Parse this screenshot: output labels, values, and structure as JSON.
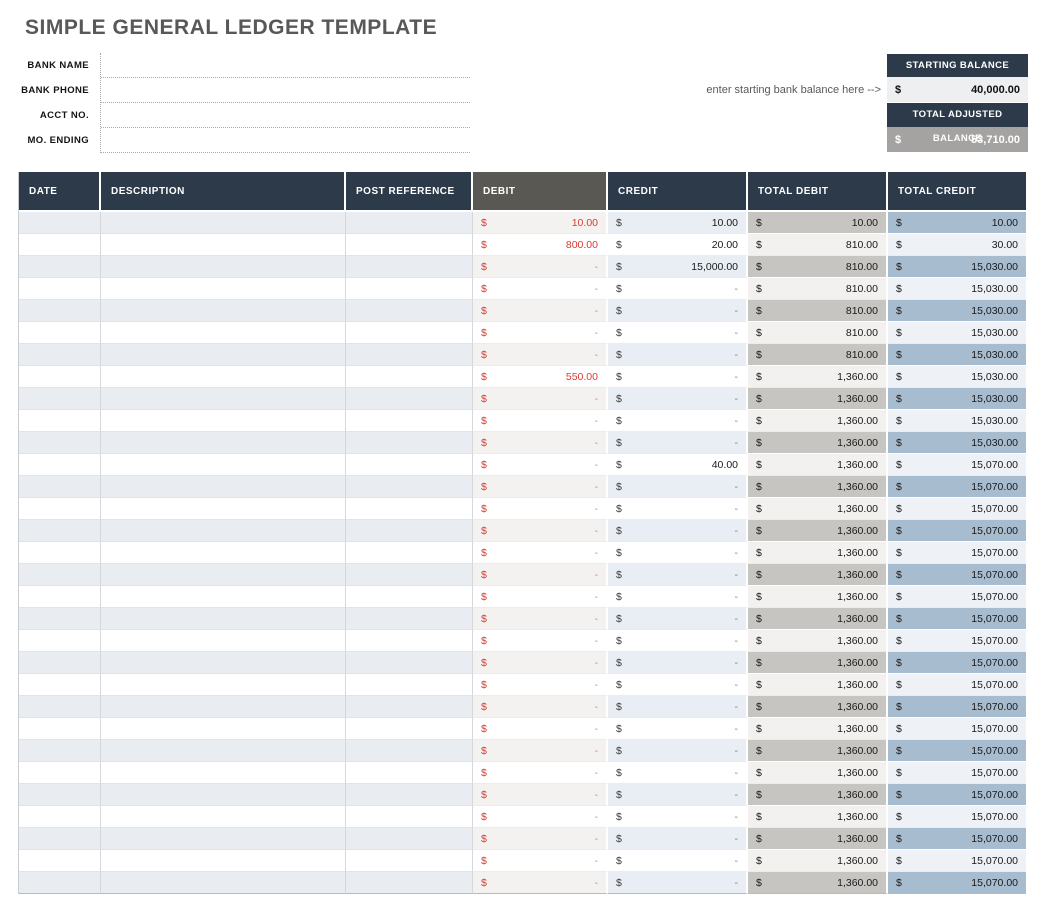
{
  "title": "SIMPLE GENERAL LEDGER TEMPLATE",
  "form": {
    "fields": [
      {
        "label": "BANK NAME",
        "value": ""
      },
      {
        "label": "BANK PHONE",
        "value": ""
      },
      {
        "label": "ACCT NO.",
        "value": ""
      },
      {
        "label": "MO. ENDING",
        "value": ""
      }
    ]
  },
  "balance": {
    "annotation": "enter starting bank balance here -->",
    "starting": {
      "label": "STARTING BALANCE",
      "currency": "$",
      "value": "40,000.00"
    },
    "adjusted": {
      "label": "TOTAL ADJUSTED BALANCE",
      "currency": "$",
      "value": "53,710.00"
    }
  },
  "table": {
    "columns": [
      "DATE",
      "DESCRIPTION",
      "POST REFERENCE",
      "DEBIT",
      "CREDIT",
      "TOTAL DEBIT",
      "TOTAL CREDIT"
    ],
    "currency": "$",
    "rows": [
      {
        "date": "",
        "description": "",
        "post_reference": "",
        "debit": "10.00",
        "credit": "10.00",
        "total_debit": "10.00",
        "total_credit": "10.00"
      },
      {
        "date": "",
        "description": "",
        "post_reference": "",
        "debit": "800.00",
        "credit": "20.00",
        "total_debit": "810.00",
        "total_credit": "30.00"
      },
      {
        "date": "",
        "description": "",
        "post_reference": "",
        "debit": "-",
        "credit": "15,000.00",
        "total_debit": "810.00",
        "total_credit": "15,030.00"
      },
      {
        "date": "",
        "description": "",
        "post_reference": "",
        "debit": "-",
        "credit": "-",
        "total_debit": "810.00",
        "total_credit": "15,030.00"
      },
      {
        "date": "",
        "description": "",
        "post_reference": "",
        "debit": "-",
        "credit": "-",
        "total_debit": "810.00",
        "total_credit": "15,030.00"
      },
      {
        "date": "",
        "description": "",
        "post_reference": "",
        "debit": "-",
        "credit": "-",
        "total_debit": "810.00",
        "total_credit": "15,030.00"
      },
      {
        "date": "",
        "description": "",
        "post_reference": "",
        "debit": "-",
        "credit": "-",
        "total_debit": "810.00",
        "total_credit": "15,030.00"
      },
      {
        "date": "",
        "description": "",
        "post_reference": "",
        "debit": "550.00",
        "credit": "-",
        "total_debit": "1,360.00",
        "total_credit": "15,030.00"
      },
      {
        "date": "",
        "description": "",
        "post_reference": "",
        "debit": "-",
        "credit": "-",
        "total_debit": "1,360.00",
        "total_credit": "15,030.00"
      },
      {
        "date": "",
        "description": "",
        "post_reference": "",
        "debit": "-",
        "credit": "-",
        "total_debit": "1,360.00",
        "total_credit": "15,030.00"
      },
      {
        "date": "",
        "description": "",
        "post_reference": "",
        "debit": "-",
        "credit": "-",
        "total_debit": "1,360.00",
        "total_credit": "15,030.00"
      },
      {
        "date": "",
        "description": "",
        "post_reference": "",
        "debit": "-",
        "credit": "40.00",
        "total_debit": "1,360.00",
        "total_credit": "15,070.00"
      },
      {
        "date": "",
        "description": "",
        "post_reference": "",
        "debit": "-",
        "credit": "-",
        "total_debit": "1,360.00",
        "total_credit": "15,070.00"
      },
      {
        "date": "",
        "description": "",
        "post_reference": "",
        "debit": "-",
        "credit": "-",
        "total_debit": "1,360.00",
        "total_credit": "15,070.00"
      },
      {
        "date": "",
        "description": "",
        "post_reference": "",
        "debit": "-",
        "credit": "-",
        "total_debit": "1,360.00",
        "total_credit": "15,070.00"
      },
      {
        "date": "",
        "description": "",
        "post_reference": "",
        "debit": "-",
        "credit": "-",
        "total_debit": "1,360.00",
        "total_credit": "15,070.00"
      },
      {
        "date": "",
        "description": "",
        "post_reference": "",
        "debit": "-",
        "credit": "-",
        "total_debit": "1,360.00",
        "total_credit": "15,070.00"
      },
      {
        "date": "",
        "description": "",
        "post_reference": "",
        "debit": "-",
        "credit": "-",
        "total_debit": "1,360.00",
        "total_credit": "15,070.00"
      },
      {
        "date": "",
        "description": "",
        "post_reference": "",
        "debit": "-",
        "credit": "-",
        "total_debit": "1,360.00",
        "total_credit": "15,070.00"
      },
      {
        "date": "",
        "description": "",
        "post_reference": "",
        "debit": "-",
        "credit": "-",
        "total_debit": "1,360.00",
        "total_credit": "15,070.00"
      },
      {
        "date": "",
        "description": "",
        "post_reference": "",
        "debit": "-",
        "credit": "-",
        "total_debit": "1,360.00",
        "total_credit": "15,070.00"
      },
      {
        "date": "",
        "description": "",
        "post_reference": "",
        "debit": "-",
        "credit": "-",
        "total_debit": "1,360.00",
        "total_credit": "15,070.00"
      },
      {
        "date": "",
        "description": "",
        "post_reference": "",
        "debit": "-",
        "credit": "-",
        "total_debit": "1,360.00",
        "total_credit": "15,070.00"
      },
      {
        "date": "",
        "description": "",
        "post_reference": "",
        "debit": "-",
        "credit": "-",
        "total_debit": "1,360.00",
        "total_credit": "15,070.00"
      },
      {
        "date": "",
        "description": "",
        "post_reference": "",
        "debit": "-",
        "credit": "-",
        "total_debit": "1,360.00",
        "total_credit": "15,070.00"
      },
      {
        "date": "",
        "description": "",
        "post_reference": "",
        "debit": "-",
        "credit": "-",
        "total_debit": "1,360.00",
        "total_credit": "15,070.00"
      },
      {
        "date": "",
        "description": "",
        "post_reference": "",
        "debit": "-",
        "credit": "-",
        "total_debit": "1,360.00",
        "total_credit": "15,070.00"
      },
      {
        "date": "",
        "description": "",
        "post_reference": "",
        "debit": "-",
        "credit": "-",
        "total_debit": "1,360.00",
        "total_credit": "15,070.00"
      },
      {
        "date": "",
        "description": "",
        "post_reference": "",
        "debit": "-",
        "credit": "-",
        "total_debit": "1,360.00",
        "total_credit": "15,070.00"
      },
      {
        "date": "",
        "description": "",
        "post_reference": "",
        "debit": "-",
        "credit": "-",
        "total_debit": "1,360.00",
        "total_credit": "15,070.00"
      },
      {
        "date": "",
        "description": "",
        "post_reference": "",
        "debit": "-",
        "credit": "-",
        "total_debit": "1,360.00",
        "total_credit": "15,070.00"
      }
    ]
  },
  "colors": {
    "header_navy": "#2c3a4a",
    "header_debit_gray": "#5a5853",
    "debit_red": "#dd3a2d",
    "row_stripe": "#e9ecf0",
    "debit_stripe": "#f4f2f0",
    "credit_stripe": "#e9eef4",
    "total_debit_stripe": "#c7c5c1",
    "total_credit_stripe": "#a8bccf",
    "starting_value_bg": "#edeff1",
    "adjusted_value_bg": "#a5a3a2"
  }
}
